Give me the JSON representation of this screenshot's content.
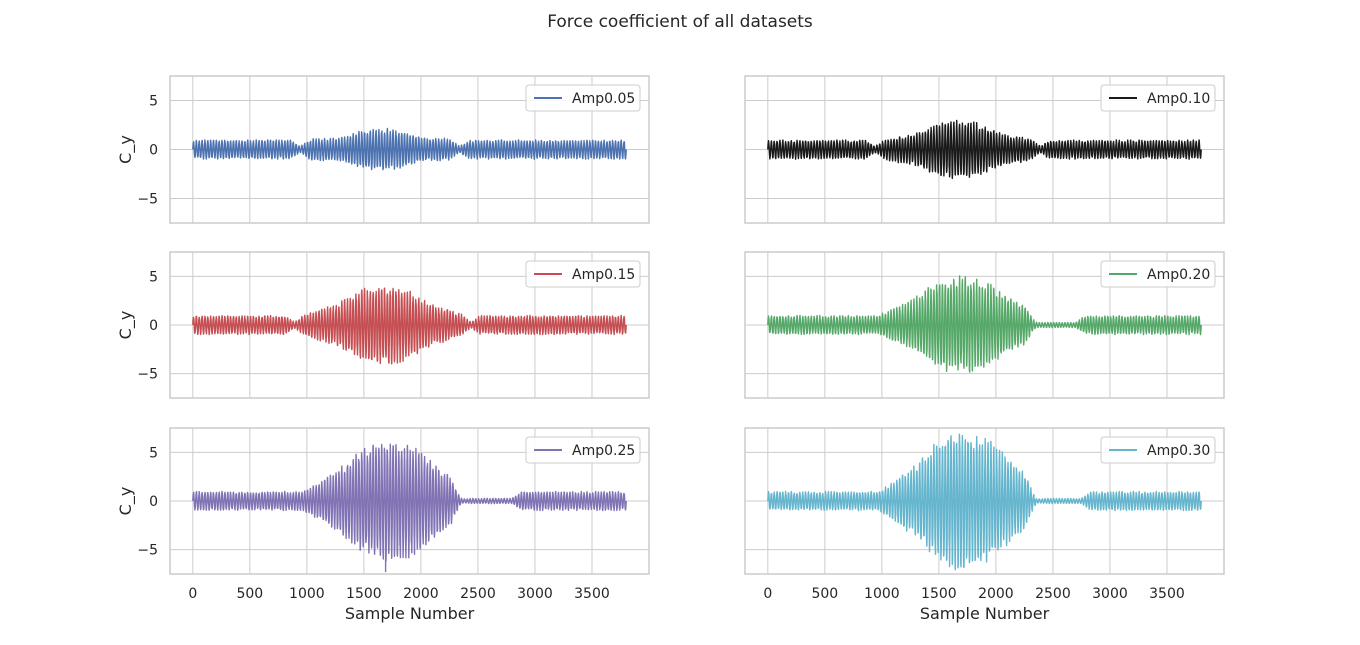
{
  "chart_data": {
    "type": "line",
    "title": "Force coefficient of all datasets",
    "grid": true,
    "legend_placement": "top-right",
    "sample_count": 3800,
    "xlabel": "Sample Number",
    "ylabel": "C_y",
    "xlim": [
      -200,
      4000
    ],
    "ylim": [
      -7.5,
      7.5
    ],
    "xticks": [
      0,
      500,
      1000,
      1500,
      2000,
      2500,
      3000,
      3500
    ],
    "yticks": [
      -5,
      0,
      5
    ],
    "panels": [
      {
        "name": "Amp0.05",
        "color": "#4c72b0",
        "peak_amplitude": 2.0,
        "base_amplitude": 0.9,
        "burst_range": [
          1000,
          2300
        ],
        "quiet_range": null
      },
      {
        "name": "Amp0.10",
        "color": "#1a1a1a",
        "peak_amplitude": 2.8,
        "base_amplitude": 0.9,
        "burst_range": [
          1000,
          2350
        ],
        "quiet_range": null
      },
      {
        "name": "Amp0.15",
        "color": "#c44e52",
        "peak_amplitude": 3.8,
        "base_amplitude": 0.9,
        "burst_range": [
          950,
          2400
        ],
        "quiet_range": null
      },
      {
        "name": "Amp0.20",
        "color": "#55a868",
        "peak_amplitude": 4.7,
        "base_amplitude": 0.9,
        "burst_range": [
          950,
          2450
        ],
        "quiet_range": [
          2250,
          2800
        ]
      },
      {
        "name": "Amp0.25",
        "color": "#8172b3",
        "peak_amplitude": 5.8,
        "min_value": -7.3,
        "base_amplitude": 0.9,
        "burst_range": [
          950,
          2500
        ],
        "quiet_range": [
          2250,
          2900
        ]
      },
      {
        "name": "Amp0.30",
        "color": "#64b5cd",
        "peak_amplitude": 6.6,
        "base_amplitude": 0.9,
        "burst_range": [
          950,
          2500
        ],
        "quiet_range": [
          2250,
          2850
        ]
      }
    ]
  }
}
